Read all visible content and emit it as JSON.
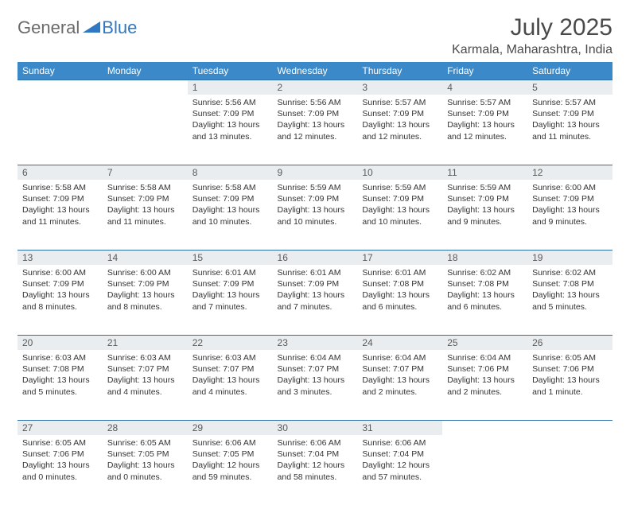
{
  "logo": {
    "general": "General",
    "blue": "Blue",
    "icon_color": "#2f78c2"
  },
  "title": "July 2025",
  "location": "Karmala, Maharashtra, India",
  "colors": {
    "header_bg": "#3b89c9",
    "header_text": "#ffffff",
    "daynum_bg": "#e9edf0",
    "daynum_border": "#2f6fa8",
    "body_text": "#333333",
    "title_text": "#4a4a4a",
    "logo_gray": "#6b6b6b"
  },
  "weekdays": [
    "Sunday",
    "Monday",
    "Tuesday",
    "Wednesday",
    "Thursday",
    "Friday",
    "Saturday"
  ],
  "weeks": [
    [
      null,
      null,
      {
        "n": "1",
        "sr": "5:56 AM",
        "ss": "7:09 PM",
        "dl": "13 hours and 13 minutes."
      },
      {
        "n": "2",
        "sr": "5:56 AM",
        "ss": "7:09 PM",
        "dl": "13 hours and 12 minutes."
      },
      {
        "n": "3",
        "sr": "5:57 AM",
        "ss": "7:09 PM",
        "dl": "13 hours and 12 minutes."
      },
      {
        "n": "4",
        "sr": "5:57 AM",
        "ss": "7:09 PM",
        "dl": "13 hours and 12 minutes."
      },
      {
        "n": "5",
        "sr": "5:57 AM",
        "ss": "7:09 PM",
        "dl": "13 hours and 11 minutes."
      }
    ],
    [
      {
        "n": "6",
        "sr": "5:58 AM",
        "ss": "7:09 PM",
        "dl": "13 hours and 11 minutes."
      },
      {
        "n": "7",
        "sr": "5:58 AM",
        "ss": "7:09 PM",
        "dl": "13 hours and 11 minutes."
      },
      {
        "n": "8",
        "sr": "5:58 AM",
        "ss": "7:09 PM",
        "dl": "13 hours and 10 minutes."
      },
      {
        "n": "9",
        "sr": "5:59 AM",
        "ss": "7:09 PM",
        "dl": "13 hours and 10 minutes."
      },
      {
        "n": "10",
        "sr": "5:59 AM",
        "ss": "7:09 PM",
        "dl": "13 hours and 10 minutes."
      },
      {
        "n": "11",
        "sr": "5:59 AM",
        "ss": "7:09 PM",
        "dl": "13 hours and 9 minutes."
      },
      {
        "n": "12",
        "sr": "6:00 AM",
        "ss": "7:09 PM",
        "dl": "13 hours and 9 minutes."
      }
    ],
    [
      {
        "n": "13",
        "sr": "6:00 AM",
        "ss": "7:09 PM",
        "dl": "13 hours and 8 minutes."
      },
      {
        "n": "14",
        "sr": "6:00 AM",
        "ss": "7:09 PM",
        "dl": "13 hours and 8 minutes."
      },
      {
        "n": "15",
        "sr": "6:01 AM",
        "ss": "7:09 PM",
        "dl": "13 hours and 7 minutes."
      },
      {
        "n": "16",
        "sr": "6:01 AM",
        "ss": "7:09 PM",
        "dl": "13 hours and 7 minutes."
      },
      {
        "n": "17",
        "sr": "6:01 AM",
        "ss": "7:08 PM",
        "dl": "13 hours and 6 minutes."
      },
      {
        "n": "18",
        "sr": "6:02 AM",
        "ss": "7:08 PM",
        "dl": "13 hours and 6 minutes."
      },
      {
        "n": "19",
        "sr": "6:02 AM",
        "ss": "7:08 PM",
        "dl": "13 hours and 5 minutes."
      }
    ],
    [
      {
        "n": "20",
        "sr": "6:03 AM",
        "ss": "7:08 PM",
        "dl": "13 hours and 5 minutes."
      },
      {
        "n": "21",
        "sr": "6:03 AM",
        "ss": "7:07 PM",
        "dl": "13 hours and 4 minutes."
      },
      {
        "n": "22",
        "sr": "6:03 AM",
        "ss": "7:07 PM",
        "dl": "13 hours and 4 minutes."
      },
      {
        "n": "23",
        "sr": "6:04 AM",
        "ss": "7:07 PM",
        "dl": "13 hours and 3 minutes."
      },
      {
        "n": "24",
        "sr": "6:04 AM",
        "ss": "7:07 PM",
        "dl": "13 hours and 2 minutes."
      },
      {
        "n": "25",
        "sr": "6:04 AM",
        "ss": "7:06 PM",
        "dl": "13 hours and 2 minutes."
      },
      {
        "n": "26",
        "sr": "6:05 AM",
        "ss": "7:06 PM",
        "dl": "13 hours and 1 minute."
      }
    ],
    [
      {
        "n": "27",
        "sr": "6:05 AM",
        "ss": "7:06 PM",
        "dl": "13 hours and 0 minutes."
      },
      {
        "n": "28",
        "sr": "6:05 AM",
        "ss": "7:05 PM",
        "dl": "13 hours and 0 minutes."
      },
      {
        "n": "29",
        "sr": "6:06 AM",
        "ss": "7:05 PM",
        "dl": "12 hours and 59 minutes."
      },
      {
        "n": "30",
        "sr": "6:06 AM",
        "ss": "7:04 PM",
        "dl": "12 hours and 58 minutes."
      },
      {
        "n": "31",
        "sr": "6:06 AM",
        "ss": "7:04 PM",
        "dl": "12 hours and 57 minutes."
      },
      null,
      null
    ]
  ],
  "labels": {
    "sunrise": "Sunrise:",
    "sunset": "Sunset:",
    "daylight": "Daylight:"
  }
}
